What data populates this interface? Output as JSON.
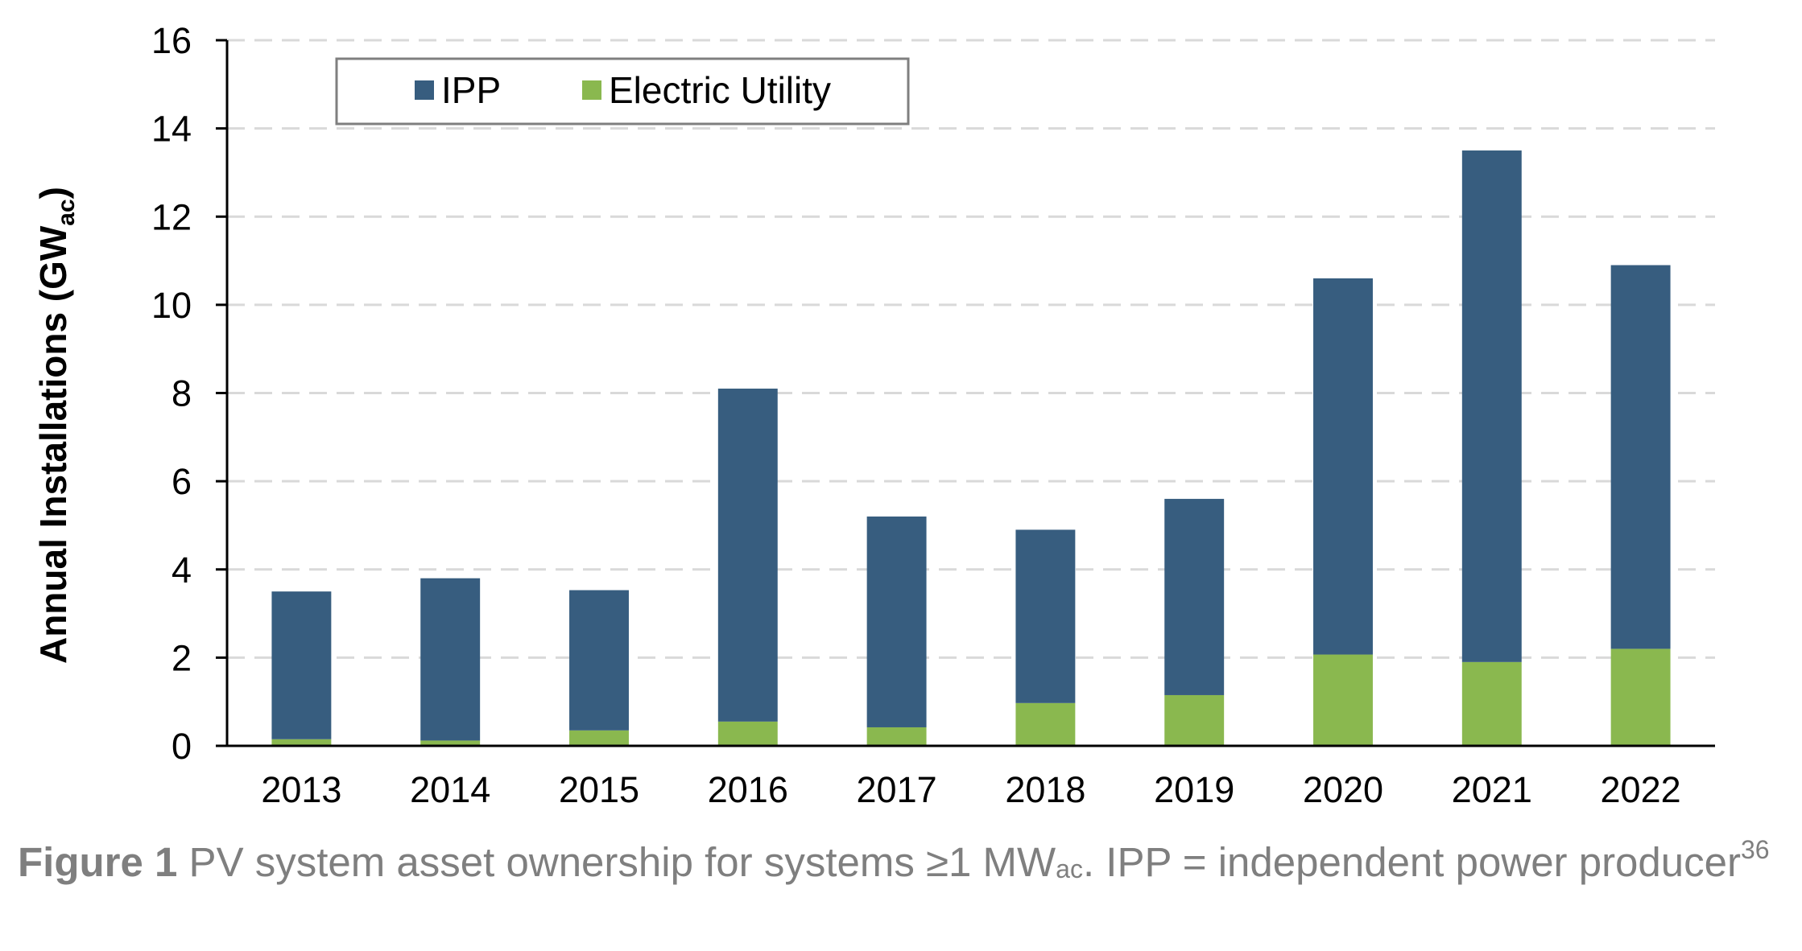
{
  "chart_data": {
    "type": "bar",
    "stacked": true,
    "categories": [
      "2013",
      "2014",
      "2015",
      "2016",
      "2017",
      "2018",
      "2019",
      "2020",
      "2021",
      "2022"
    ],
    "series": [
      {
        "name": "Electric Utility",
        "color": "#8ab84f",
        "values": [
          0.15,
          0.12,
          0.35,
          0.55,
          0.42,
          0.97,
          1.15,
          2.07,
          1.9,
          2.2
        ]
      },
      {
        "name": "IPP",
        "color": "#375d7f",
        "values": [
          3.35,
          3.68,
          3.18,
          7.55,
          4.78,
          3.93,
          4.45,
          8.53,
          11.6,
          8.7
        ]
      }
    ],
    "ylabel": "Annual Installations (GW",
    "ylabel_sub": "ac",
    "ylabel_close": ")",
    "ylim": [
      0,
      16
    ],
    "yticks": [
      0,
      2,
      4,
      6,
      8,
      10,
      12,
      14,
      16
    ],
    "grid": true,
    "legend_position": "top-left",
    "legend_order": [
      "IPP",
      "Electric Utility"
    ]
  },
  "caption": {
    "label": "Figure 1",
    "text": "PV system asset ownership for systems ≥1 MW",
    "sub": "ac",
    "text2": ". IPP = independent power producer",
    "sup": "36"
  }
}
